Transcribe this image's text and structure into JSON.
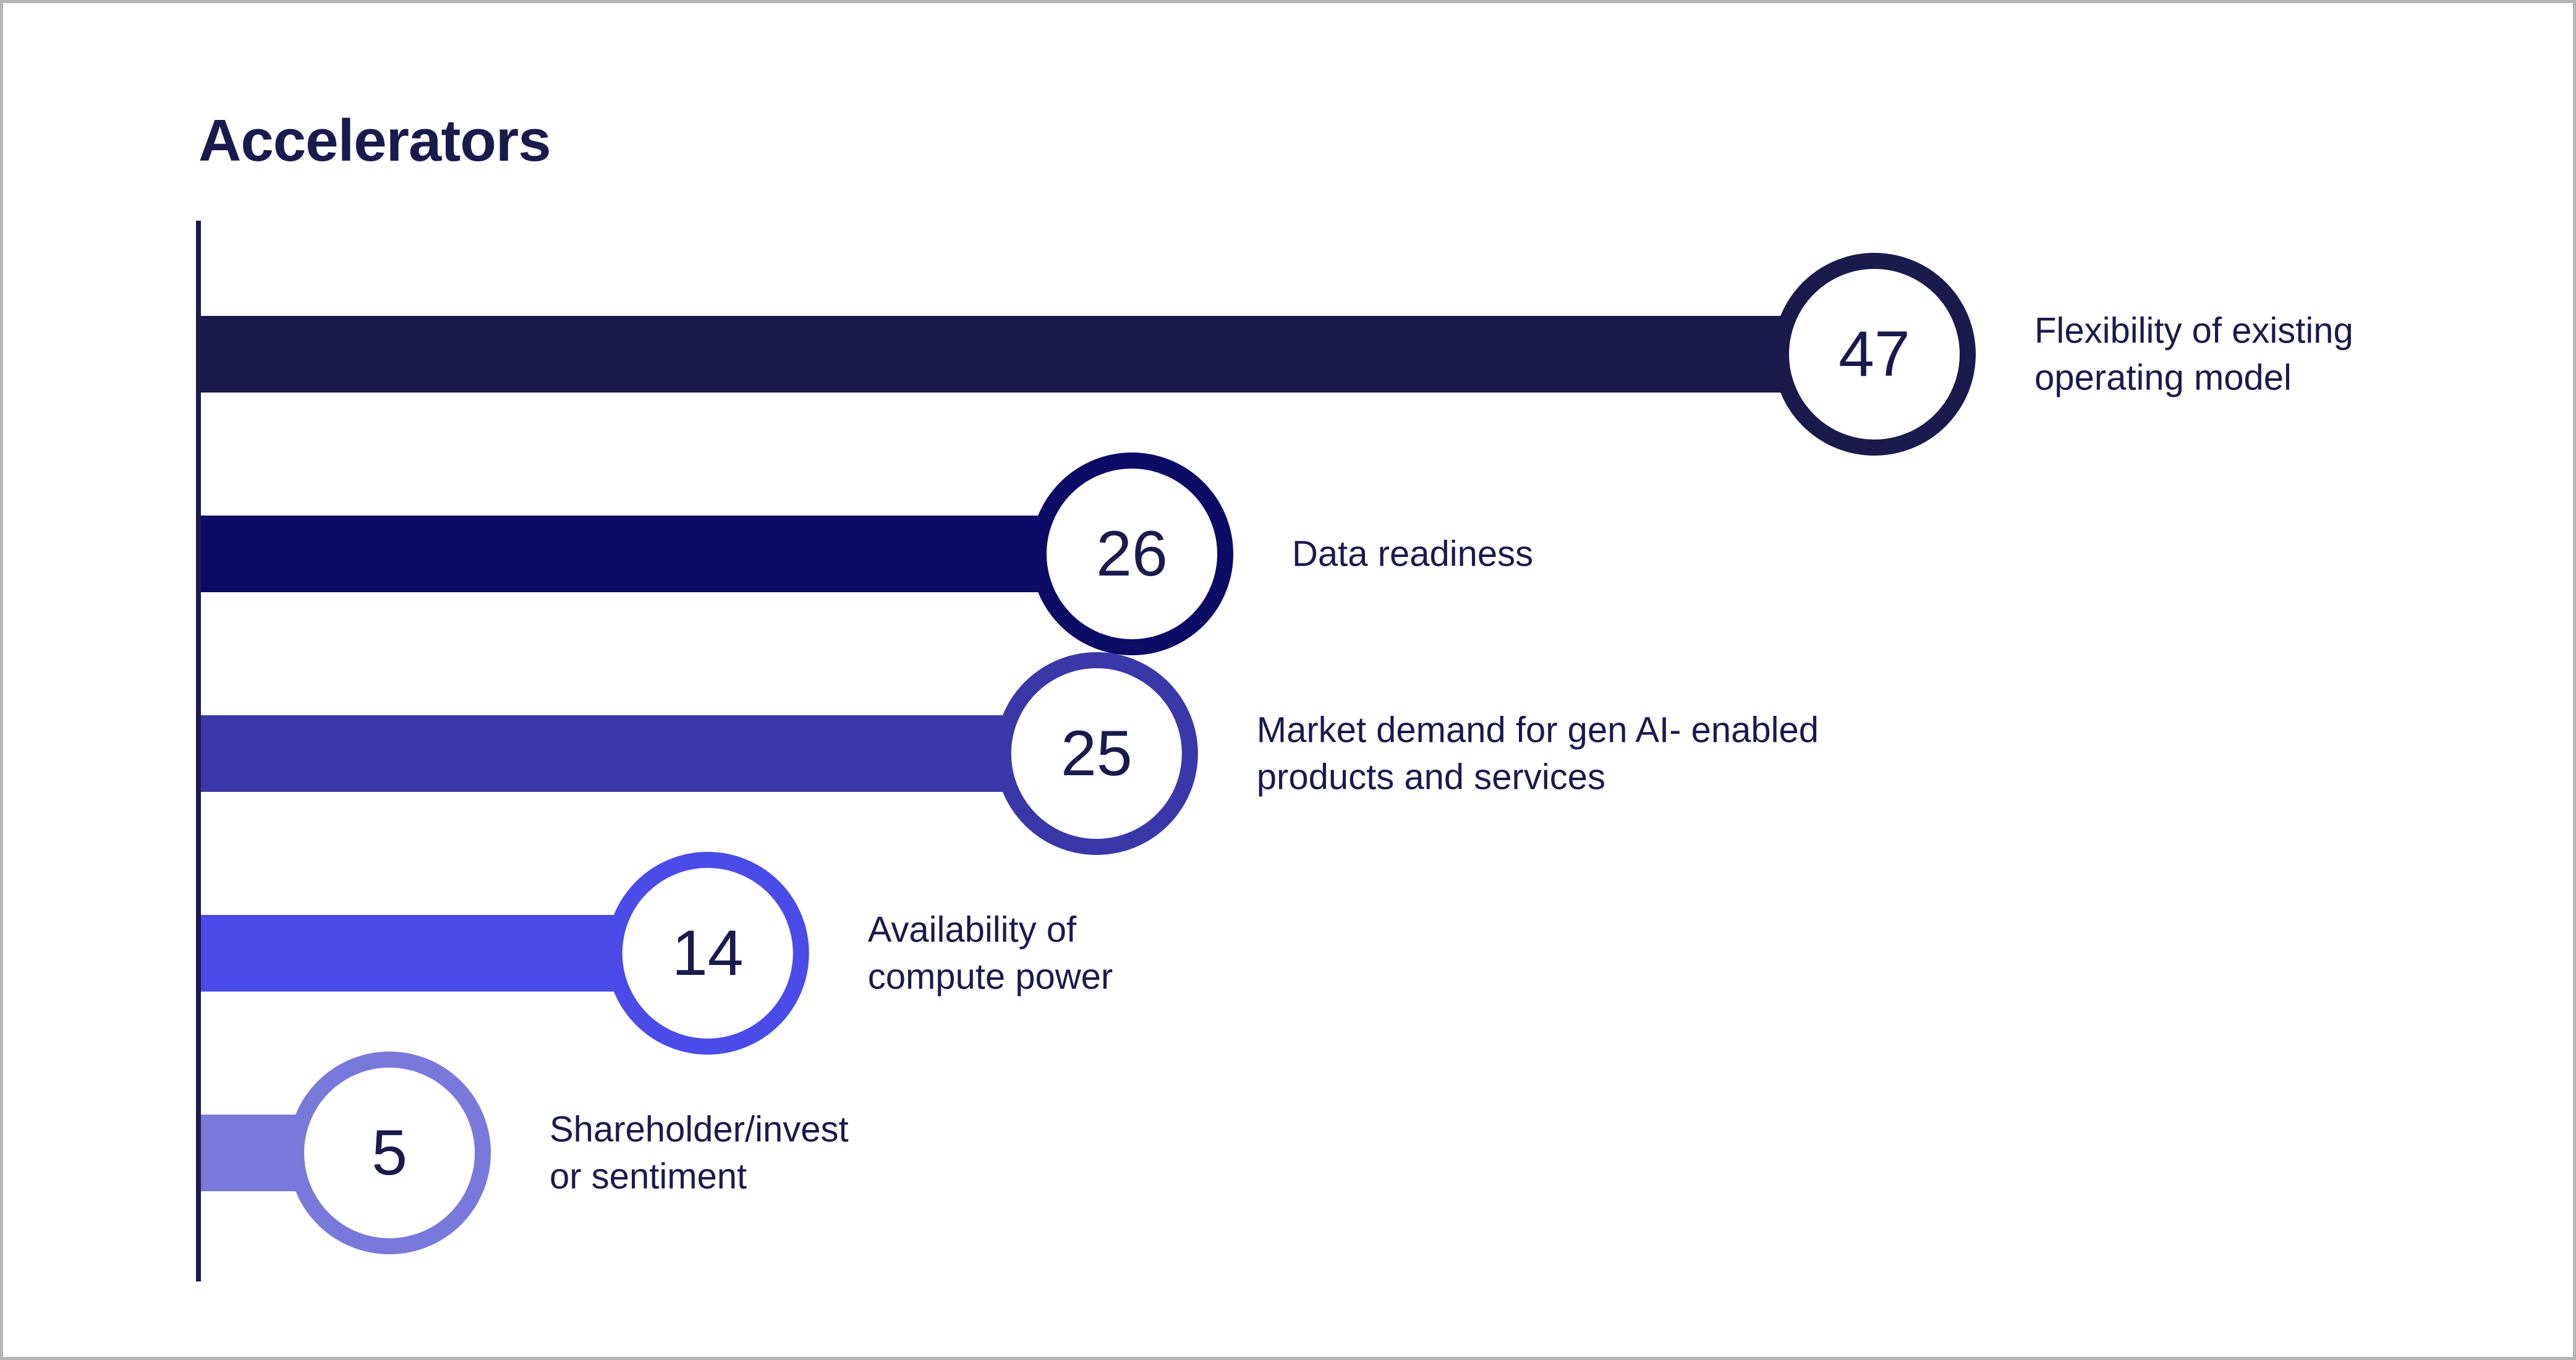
{
  "chart_data": {
    "type": "bar",
    "orientation": "horizontal",
    "title": "Accelerators",
    "xlabel": "",
    "ylabel": "",
    "xlim": [
      0,
      47
    ],
    "grid": false,
    "legend": "none",
    "bars": [
      {
        "value": 47,
        "value_label": "47",
        "label_lines": [
          "Flexibility of existing",
          "operating model"
        ],
        "color": "#1b1a4d"
      },
      {
        "value": 26,
        "value_label": "26",
        "label_lines": [
          "Data readiness"
        ],
        "color": "#0c0c66"
      },
      {
        "value": 25,
        "value_label": "25",
        "label_lines": [
          "Market demand for gen AI- enabled",
          "products and services"
        ],
        "color": "#3a38a8"
      },
      {
        "value": 14,
        "value_label": "14",
        "label_lines": [
          "Availability of",
          "compute power"
        ],
        "color": "#4a4be8"
      },
      {
        "value": 5,
        "value_label": "5",
        "label_lines": [
          "Shareholder/invest",
          "or sentiment"
        ],
        "color": "#7979db"
      }
    ]
  }
}
